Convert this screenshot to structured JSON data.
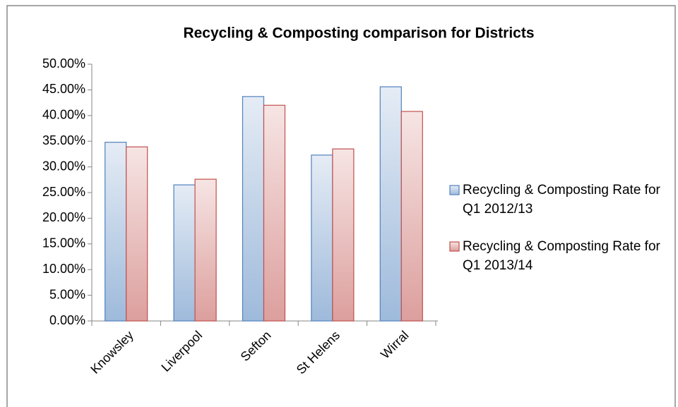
{
  "chart_data": {
    "type": "bar",
    "title": "Recycling & Composting comparison for Districts",
    "categories": [
      "Knowsley",
      "Liverpool",
      "Sefton",
      "St Helens",
      "Wirral"
    ],
    "series": [
      {
        "name": "Recycling & Composting Rate for Q1 2012/13",
        "color": "#4f81bd",
        "values": [
          34.8,
          26.5,
          43.7,
          32.3,
          45.6
        ]
      },
      {
        "name": "Recycling & Composting Rate for Q1 2013/14",
        "color": "#c0504d",
        "values": [
          33.9,
          27.6,
          42.0,
          33.5,
          40.8
        ]
      }
    ],
    "ylim": [
      0,
      50
    ],
    "yticks": [
      {
        "value": 0,
        "label": "0.00%"
      },
      {
        "value": 5,
        "label": "5.00%"
      },
      {
        "value": 10,
        "label": "10.00%"
      },
      {
        "value": 15,
        "label": "15.00%"
      },
      {
        "value": 20,
        "label": "20.00%"
      },
      {
        "value": 25,
        "label": "25.00%"
      },
      {
        "value": 30,
        "label": "30.00%"
      },
      {
        "value": 35,
        "label": "35.00%"
      },
      {
        "value": 40,
        "label": "40.00%"
      },
      {
        "value": 45,
        "label": "45.00%"
      },
      {
        "value": 50,
        "label": "50.00%"
      }
    ],
    "legend": "right",
    "grid": false
  }
}
